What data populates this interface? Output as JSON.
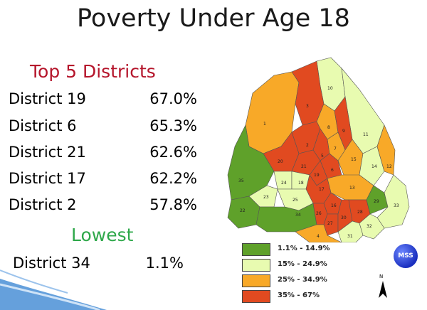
{
  "title": "Poverty Under Age 18",
  "top_section": {
    "heading": "Top 5 Districts",
    "rows": [
      {
        "label": "District 19",
        "value": "67.0%"
      },
      {
        "label": "District 6",
        "value": "65.3%"
      },
      {
        "label": "District 21",
        "value": "62.6%"
      },
      {
        "label": "District 17",
        "value": "62.2%"
      },
      {
        "label": "District 2",
        "value": "57.8%"
      }
    ]
  },
  "lowest_section": {
    "heading": "Lowest",
    "row": {
      "label": "District 34",
      "value": "1.1%"
    }
  },
  "legend": [
    {
      "label": "1.1% - 14.9%",
      "color": "#5fa12a"
    },
    {
      "label": "15% - 24.9%",
      "color": "#e8fbb0"
    },
    {
      "label": "25% - 34.9%",
      "color": "#f8a928"
    },
    {
      "label": "35% - 67%",
      "color": "#e14a20"
    }
  ],
  "logo_text": "MSS",
  "north_label": "N",
  "districts": [
    {
      "id": "1",
      "cls": "c3"
    },
    {
      "id": "2",
      "cls": "c4"
    },
    {
      "id": "3",
      "cls": "c4"
    },
    {
      "id": "4",
      "cls": "c3"
    },
    {
      "id": "5",
      "cls": "c4"
    },
    {
      "id": "6",
      "cls": "c4"
    },
    {
      "id": "7",
      "cls": "c3"
    },
    {
      "id": "8",
      "cls": "c3"
    },
    {
      "id": "9",
      "cls": "c4"
    },
    {
      "id": "10",
      "cls": "c2"
    },
    {
      "id": "11",
      "cls": "c2"
    },
    {
      "id": "12",
      "cls": "c3"
    },
    {
      "id": "13",
      "cls": "c3"
    },
    {
      "id": "14",
      "cls": "c2"
    },
    {
      "id": "15",
      "cls": "c3"
    },
    {
      "id": "16",
      "cls": "c4"
    },
    {
      "id": "17",
      "cls": "c4"
    },
    {
      "id": "18",
      "cls": "c2"
    },
    {
      "id": "19",
      "cls": "c4"
    },
    {
      "id": "20",
      "cls": "c4"
    },
    {
      "id": "21",
      "cls": "c4"
    },
    {
      "id": "22",
      "cls": "c1"
    },
    {
      "id": "23",
      "cls": "c2"
    },
    {
      "id": "24",
      "cls": "c2"
    },
    {
      "id": "25",
      "cls": "c2"
    },
    {
      "id": "26",
      "cls": "c4"
    },
    {
      "id": "27",
      "cls": "c4"
    },
    {
      "id": "28",
      "cls": "c4"
    },
    {
      "id": "29",
      "cls": "c1"
    },
    {
      "id": "30",
      "cls": "c4"
    },
    {
      "id": "31",
      "cls": "c2"
    },
    {
      "id": "32",
      "cls": "c2"
    },
    {
      "id": "33",
      "cls": "c2"
    },
    {
      "id": "34",
      "cls": "c1"
    },
    {
      "id": "35",
      "cls": "c1"
    }
  ]
}
